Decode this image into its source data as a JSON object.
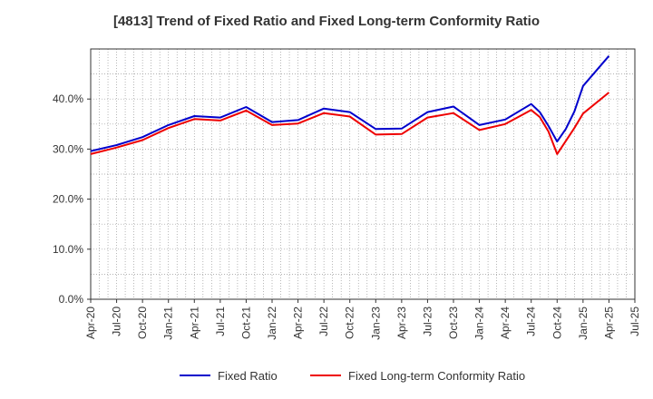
{
  "chart_data": {
    "type": "line",
    "title": "[4813]  Trend of Fixed Ratio and Fixed Long-term Conformity Ratio",
    "xlabel": "",
    "ylabel": "",
    "x_ticks": [
      "Apr-20",
      "Jul-20",
      "Oct-20",
      "Jan-21",
      "Apr-21",
      "Jul-21",
      "Oct-21",
      "Jan-22",
      "Apr-22",
      "Jul-22",
      "Oct-22",
      "Jan-23",
      "Apr-23",
      "Jul-23",
      "Oct-23",
      "Jan-24",
      "Apr-24",
      "Jul-24",
      "Oct-24",
      "Jan-25",
      "Apr-25",
      "Jul-25"
    ],
    "y_ticks": [
      "0.0%",
      "10.0%",
      "20.0%",
      "30.0%",
      "40.0%"
    ],
    "ylim": [
      0,
      50
    ],
    "grid": true,
    "legend_position": "bottom",
    "series": [
      {
        "name": "Fixed Ratio",
        "color": "#0000cc",
        "points": [
          [
            "Apr-20",
            29.6
          ],
          [
            "Jul-20",
            30.8
          ],
          [
            "Oct-20",
            32.4
          ],
          [
            "Jan-21",
            34.8
          ],
          [
            "Apr-21",
            36.6
          ],
          [
            "Jul-21",
            36.3
          ],
          [
            "Oct-21",
            38.4
          ],
          [
            "Jan-22",
            35.4
          ],
          [
            "Apr-22",
            35.8
          ],
          [
            "Jul-22",
            38.1
          ],
          [
            "Oct-22",
            37.4
          ],
          [
            "Jan-23",
            34.0
          ],
          [
            "Apr-23",
            34.1
          ],
          [
            "Jul-23",
            37.4
          ],
          [
            "Oct-23",
            38.5
          ],
          [
            "Jan-24",
            34.8
          ],
          [
            "Apr-24",
            35.9
          ],
          [
            "Jul-24",
            39.0
          ],
          [
            "Aug-24",
            37.4
          ],
          [
            "Sep-24",
            34.6
          ],
          [
            "Oct-24",
            31.5
          ],
          [
            "Nov-24",
            34.0
          ],
          [
            "Dec-24",
            37.5
          ],
          [
            "Jan-25",
            42.6
          ],
          [
            "Apr-25",
            48.6
          ]
        ]
      },
      {
        "name": "Fixed Long-term Conformity Ratio",
        "color": "#ee0000",
        "points": [
          [
            "Apr-20",
            29.0
          ],
          [
            "Jul-20",
            30.3
          ],
          [
            "Oct-20",
            31.8
          ],
          [
            "Jan-21",
            34.2
          ],
          [
            "Apr-21",
            36.0
          ],
          [
            "Jul-21",
            35.7
          ],
          [
            "Oct-21",
            37.7
          ],
          [
            "Jan-22",
            34.8
          ],
          [
            "Apr-22",
            35.1
          ],
          [
            "Jul-22",
            37.2
          ],
          [
            "Oct-22",
            36.5
          ],
          [
            "Jan-23",
            32.9
          ],
          [
            "Apr-23",
            33.0
          ],
          [
            "Jul-23",
            36.3
          ],
          [
            "Oct-23",
            37.2
          ],
          [
            "Jan-24",
            33.8
          ],
          [
            "Apr-24",
            35.0
          ],
          [
            "Jul-24",
            37.8
          ],
          [
            "Aug-24",
            36.4
          ],
          [
            "Sep-24",
            33.5
          ],
          [
            "Oct-24",
            29.0
          ],
          [
            "Nov-24",
            31.6
          ],
          [
            "Dec-24",
            34.2
          ],
          [
            "Jan-25",
            37.1
          ],
          [
            "Apr-25",
            41.3
          ]
        ]
      }
    ]
  }
}
